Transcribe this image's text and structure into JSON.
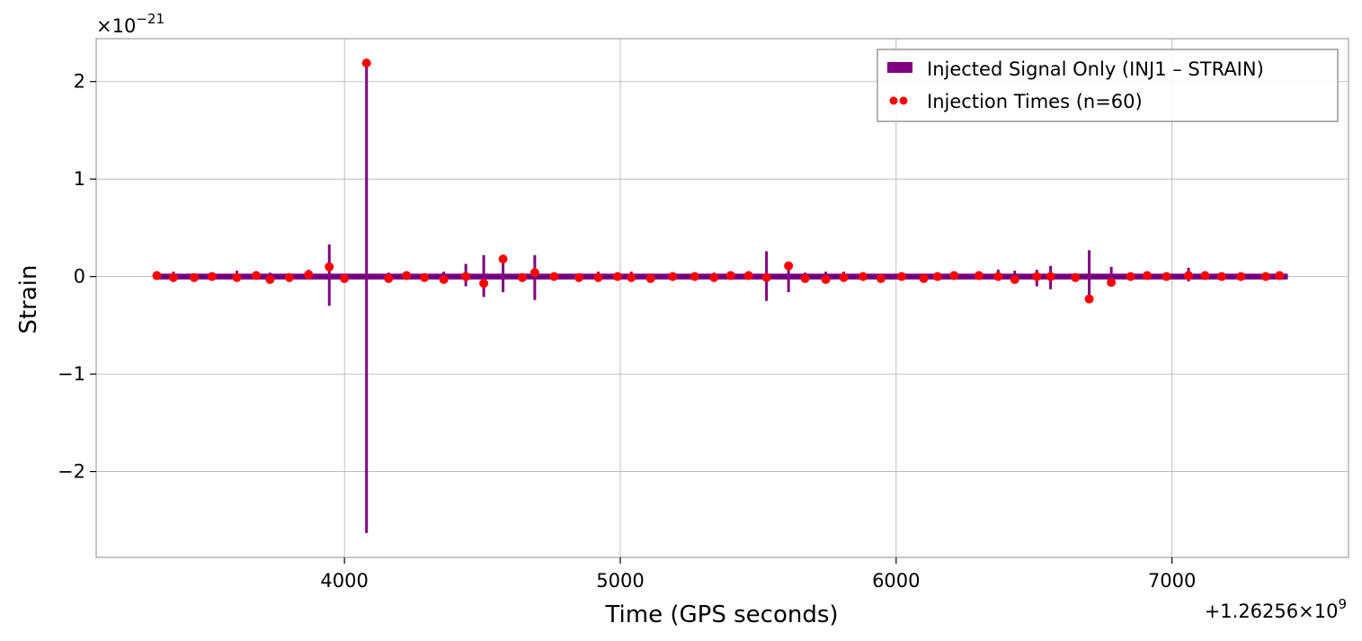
{
  "chart_data": {
    "type": "line",
    "xlabel": "Time (GPS seconds)",
    "ylabel": "Strain",
    "x_offset_text": "+1.26256×10",
    "x_offset_exp": "9",
    "y_offset_text": "×10",
    "y_offset_exp": "−21",
    "xlim": [
      3100,
      7640
    ],
    "ylim": [
      -2.88,
      2.44
    ],
    "x_ticks": [
      4000,
      5000,
      6000,
      7000
    ],
    "x_tick_labels": [
      "4000",
      "5000",
      "6000",
      "7000"
    ],
    "y_ticks": [
      -2,
      -1,
      0,
      1,
      2
    ],
    "y_tick_labels": [
      "−2",
      "−1",
      "0",
      "1",
      "2"
    ],
    "grid": true,
    "legend_position": "top-right",
    "series": [
      {
        "name": "Injected Signal Only (INJ1 – STRAIN)",
        "kind": "signal",
        "color": "#800080",
        "x_range": [
          3320,
          7420
        ],
        "baseline_band": [
          -0.03,
          0.03
        ],
        "bursts": [
          {
            "t": 3320,
            "a": 0.03
          },
          {
            "t": 3380,
            "a": 0.05
          },
          {
            "t": 3455,
            "a": 0.03
          },
          {
            "t": 3520,
            "a": 0.04
          },
          {
            "t": 3610,
            "a": 0.06
          },
          {
            "t": 3680,
            "a": 0.05
          },
          {
            "t": 3730,
            "a": 0.04
          },
          {
            "t": 3870,
            "a": 0.07
          },
          {
            "t": 3945,
            "a": 0.33
          },
          {
            "t": 3945,
            "a": -0.3
          },
          {
            "t": 4080,
            "a": 2.18
          },
          {
            "t": 4080,
            "a": -2.63
          },
          {
            "t": 4160,
            "a": 0.04
          },
          {
            "t": 4225,
            "a": 0.04
          },
          {
            "t": 4360,
            "a": 0.05
          },
          {
            "t": 4440,
            "a": 0.13
          },
          {
            "t": 4440,
            "a": -0.1
          },
          {
            "t": 4505,
            "a": 0.22
          },
          {
            "t": 4505,
            "a": -0.21
          },
          {
            "t": 4575,
            "a": 0.18
          },
          {
            "t": 4575,
            "a": -0.16
          },
          {
            "t": 4645,
            "a": 0.03
          },
          {
            "t": 4690,
            "a": 0.22
          },
          {
            "t": 4690,
            "a": -0.24
          },
          {
            "t": 4920,
            "a": 0.05
          },
          {
            "t": 5040,
            "a": 0.05
          },
          {
            "t": 5110,
            "a": 0.03
          },
          {
            "t": 5190,
            "a": 0.04
          },
          {
            "t": 5340,
            "a": 0.04
          },
          {
            "t": 5400,
            "a": 0.04
          },
          {
            "t": 5465,
            "a": 0.04
          },
          {
            "t": 5530,
            "a": 0.26
          },
          {
            "t": 5530,
            "a": -0.25
          },
          {
            "t": 5610,
            "a": 0.1
          },
          {
            "t": 5610,
            "a": -0.16
          },
          {
            "t": 5670,
            "a": 0.04
          },
          {
            "t": 5745,
            "a": 0.05
          },
          {
            "t": 5810,
            "a": 0.05
          },
          {
            "t": 6020,
            "a": 0.03
          },
          {
            "t": 6100,
            "a": 0.03
          },
          {
            "t": 6150,
            "a": 0.04
          },
          {
            "t": 6300,
            "a": 0.04
          },
          {
            "t": 6370,
            "a": 0.07
          },
          {
            "t": 6430,
            "a": 0.06
          },
          {
            "t": 6510,
            "a": 0.07
          },
          {
            "t": 6510,
            "a": -0.1
          },
          {
            "t": 6560,
            "a": 0.11
          },
          {
            "t": 6560,
            "a": -0.13
          },
          {
            "t": 6700,
            "a": 0.27
          },
          {
            "t": 6700,
            "a": -0.24
          },
          {
            "t": 6780,
            "a": 0.1
          },
          {
            "t": 6780,
            "a": -0.05
          },
          {
            "t": 6850,
            "a": 0.03
          },
          {
            "t": 7060,
            "a": 0.09
          },
          {
            "t": 7060,
            "a": -0.05
          },
          {
            "t": 7180,
            "a": 0.04
          },
          {
            "t": 7390,
            "a": 0.05
          }
        ]
      },
      {
        "name": "Injection Times (n=60)",
        "kind": "scatter",
        "color": "#ff0000",
        "points": [
          [
            3320,
            0.01
          ],
          [
            3380,
            -0.01
          ],
          [
            3455,
            -0.01
          ],
          [
            3520,
            0.0
          ],
          [
            3610,
            -0.01
          ],
          [
            3680,
            0.01
          ],
          [
            3730,
            -0.03
          ],
          [
            3800,
            -0.01
          ],
          [
            3870,
            0.02
          ],
          [
            3945,
            0.1
          ],
          [
            4000,
            -0.02
          ],
          [
            4080,
            2.19
          ],
          [
            4160,
            -0.02
          ],
          [
            4225,
            0.01
          ],
          [
            4290,
            -0.01
          ],
          [
            4360,
            -0.03
          ],
          [
            4440,
            0.0
          ],
          [
            4505,
            -0.07
          ],
          [
            4575,
            0.18
          ],
          [
            4645,
            -0.01
          ],
          [
            4690,
            0.04
          ],
          [
            4760,
            0.0
          ],
          [
            4850,
            -0.01
          ],
          [
            4920,
            -0.01
          ],
          [
            4990,
            0.0
          ],
          [
            5040,
            -0.01
          ],
          [
            5110,
            -0.02
          ],
          [
            5190,
            0.0
          ],
          [
            5270,
            0.0
          ],
          [
            5340,
            -0.01
          ],
          [
            5400,
            0.01
          ],
          [
            5465,
            0.01
          ],
          [
            5530,
            -0.01
          ],
          [
            5610,
            0.11
          ],
          [
            5670,
            -0.02
          ],
          [
            5745,
            -0.03
          ],
          [
            5810,
            -0.01
          ],
          [
            5880,
            0.0
          ],
          [
            5945,
            -0.02
          ],
          [
            6020,
            0.0
          ],
          [
            6100,
            -0.02
          ],
          [
            6150,
            0.0
          ],
          [
            6210,
            0.01
          ],
          [
            6300,
            0.01
          ],
          [
            6370,
            0.0
          ],
          [
            6430,
            -0.03
          ],
          [
            6510,
            0.0
          ],
          [
            6560,
            0.0
          ],
          [
            6650,
            -0.01
          ],
          [
            6700,
            -0.23
          ],
          [
            6780,
            -0.06
          ],
          [
            6850,
            0.0
          ],
          [
            6910,
            0.01
          ],
          [
            6980,
            0.0
          ],
          [
            7060,
            0.01
          ],
          [
            7120,
            0.01
          ],
          [
            7180,
            0.0
          ],
          [
            7250,
            0.0
          ],
          [
            7340,
            0.0
          ],
          [
            7390,
            0.01
          ]
        ]
      }
    ]
  }
}
